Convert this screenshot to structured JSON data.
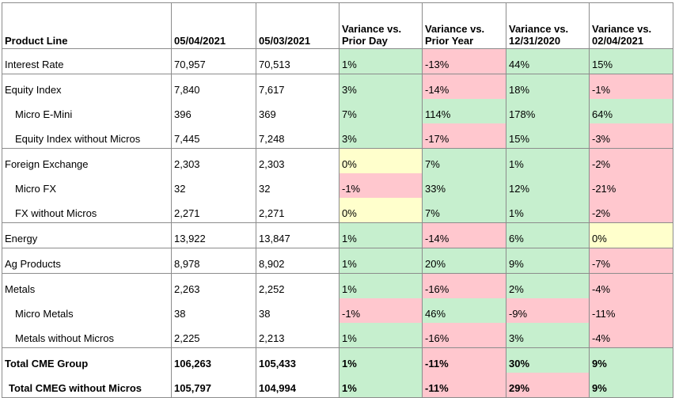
{
  "headers": {
    "product_line": "Product Line",
    "date1": "05/04/2021",
    "date2": "05/03/2021",
    "var_prior_day": [
      "Variance vs.",
      "Prior Day"
    ],
    "var_prior_year": [
      "Variance vs.",
      "Prior Year"
    ],
    "var_year_end": [
      "Variance vs.",
      "12/31/2020"
    ],
    "var_month": [
      "Variance vs.",
      "02/04/2021"
    ]
  },
  "rows": [
    {
      "product": "Interest Rate",
      "d1": "70,957",
      "d2": "70,513",
      "v1": "1%",
      "v2": "-13%",
      "v3": "44%",
      "v4": "15%"
    },
    {
      "product": "Equity Index",
      "d1": "7,840",
      "d2": "7,617",
      "v1": "3%",
      "v2": "-14%",
      "v3": "18%",
      "v4": "-1%"
    },
    {
      "product": "Micro E-Mini",
      "d1": "396",
      "d2": "369",
      "v1": "7%",
      "v2": "114%",
      "v3": "178%",
      "v4": "64%"
    },
    {
      "product": "Equity Index without Micros",
      "d1": "7,445",
      "d2": "7,248",
      "v1": "3%",
      "v2": "-17%",
      "v3": "15%",
      "v4": "-3%"
    },
    {
      "product": "Foreign Exchange",
      "d1": "2,303",
      "d2": "2,303",
      "v1": "0%",
      "v2": "7%",
      "v3": "1%",
      "v4": "-2%"
    },
    {
      "product": "Micro FX",
      "d1": "32",
      "d2": "32",
      "v1": "-1%",
      "v2": "33%",
      "v3": "12%",
      "v4": "-21%"
    },
    {
      "product": "FX without Micros",
      "d1": "2,271",
      "d2": "2,271",
      "v1": "0%",
      "v2": "7%",
      "v3": "1%",
      "v4": "-2%"
    },
    {
      "product": "Energy",
      "d1": "13,922",
      "d2": "13,847",
      "v1": "1%",
      "v2": "-14%",
      "v3": "6%",
      "v4": "0%"
    },
    {
      "product": "Ag Products",
      "d1": "8,978",
      "d2": "8,902",
      "v1": "1%",
      "v2": "20%",
      "v3": "9%",
      "v4": "-7%"
    },
    {
      "product": "Metals",
      "d1": "2,263",
      "d2": "2,252",
      "v1": "1%",
      "v2": "-16%",
      "v3": "2%",
      "v4": "-4%"
    },
    {
      "product": "Micro Metals",
      "d1": "38",
      "d2": "38",
      "v1": "-1%",
      "v2": "46%",
      "v3": "-9%",
      "v4": "-11%"
    },
    {
      "product": "Metals without Micros",
      "d1": "2,225",
      "d2": "2,213",
      "v1": "1%",
      "v2": "-16%",
      "v3": "3%",
      "v4": "-4%"
    },
    {
      "product": "Total CME Group",
      "d1": "106,263",
      "d2": "105,433",
      "v1": "1%",
      "v2": "-11%",
      "v3": "30%",
      "v4": "9%"
    },
    {
      "product": "Total CMEG without Micros",
      "d1": "105,797",
      "d2": "104,994",
      "v1": "1%",
      "v2": "-11%",
      "v3": "29%",
      "v4": "9%"
    }
  ],
  "colors": {
    "positive": "#c6efce",
    "negative": "#ffc7ce",
    "neutral": "#ffffcc",
    "border": "#8c8c8c"
  }
}
